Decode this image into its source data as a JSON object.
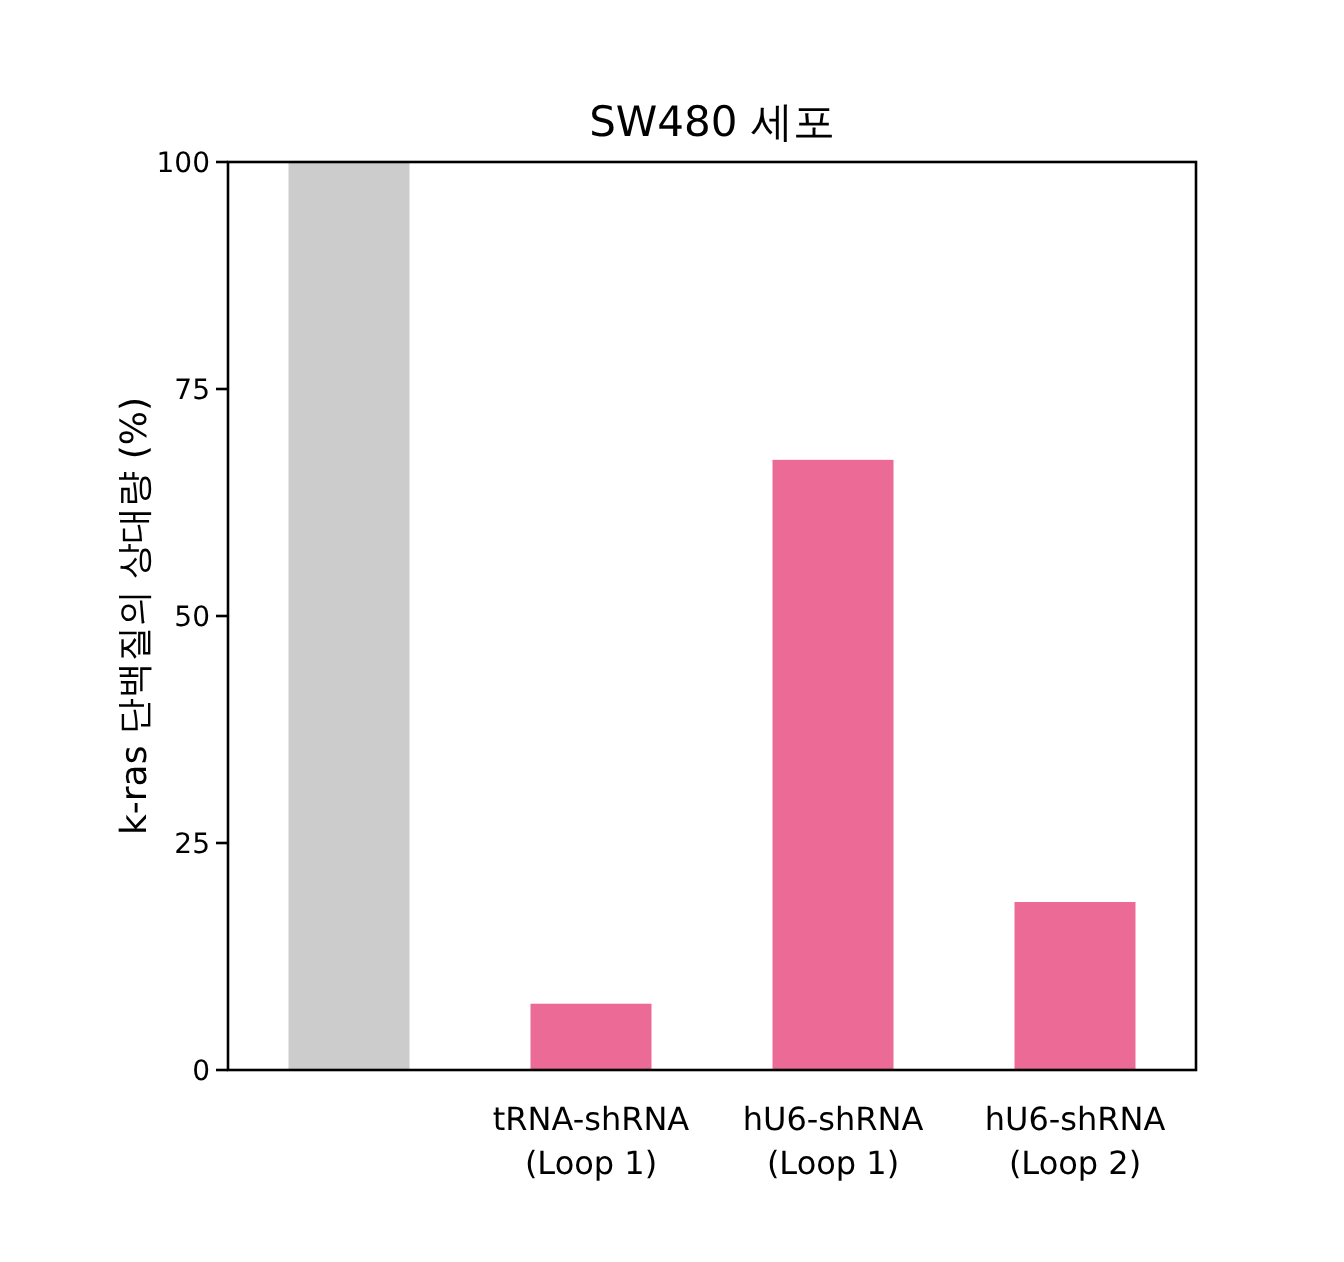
{
  "chart_data": {
    "type": "bar",
    "title": "SW480  세포",
    "ylabel": "k-ras 단백질의 상대량  (%)",
    "categories": [
      null,
      "tRNA-shRNA\n(Loop 1)",
      "hU6-shRNA\n(Loop 1)",
      "hU6-shRNA\n(Loop 2)"
    ],
    "values": [
      100,
      7.3,
      67.2,
      18.5
    ],
    "colors": [
      "#cccccc",
      "#eb6a96",
      "#eb6a96",
      "#eb6a96"
    ],
    "ylim": [
      0,
      100
    ],
    "yticks": [
      0,
      25,
      50,
      75,
      100
    ]
  }
}
